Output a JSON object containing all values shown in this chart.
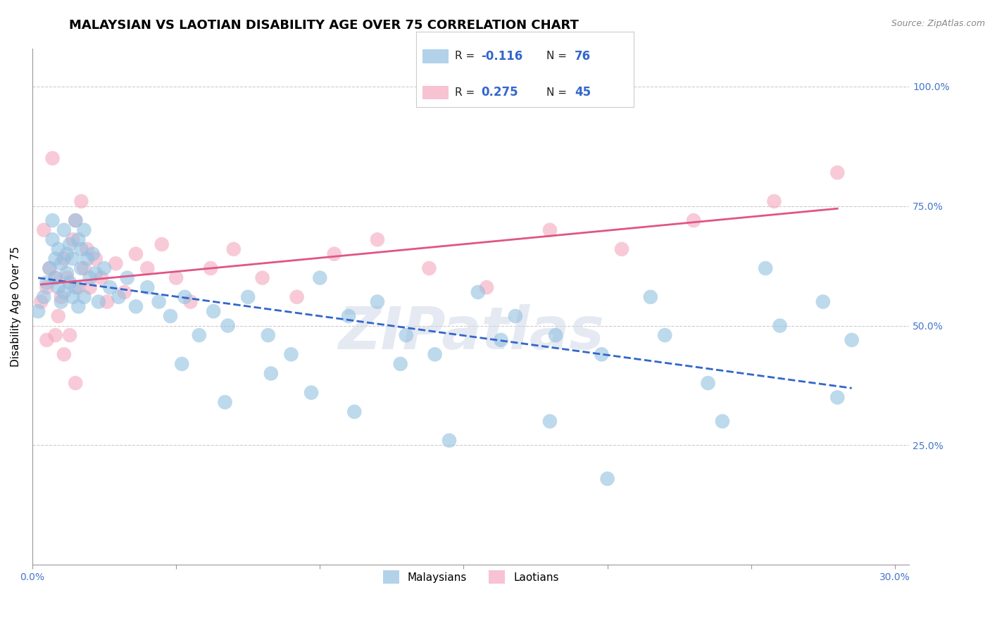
{
  "title": "MALAYSIAN VS LAOTIAN DISABILITY AGE OVER 75 CORRELATION CHART",
  "source": "Source: ZipAtlas.com",
  "ylabel": "Disability Age Over 75",
  "xlim": [
    0.0,
    0.305
  ],
  "ylim": [
    0.0,
    1.08
  ],
  "x_tick_vals": [
    0.0,
    0.05,
    0.1,
    0.15,
    0.2,
    0.25,
    0.3
  ],
  "y_tick_vals": [
    0.0,
    0.25,
    0.5,
    0.75,
    1.0
  ],
  "malaysian_color": "#92c0e0",
  "laotian_color": "#f4a8be",
  "trend_blue_color": "#3366cc",
  "trend_pink_color": "#e05585",
  "watermark": "ZIPatlas",
  "blue_scatter_x": [
    0.002,
    0.004,
    0.005,
    0.006,
    0.007,
    0.007,
    0.008,
    0.008,
    0.009,
    0.009,
    0.01,
    0.01,
    0.011,
    0.011,
    0.012,
    0.012,
    0.013,
    0.013,
    0.014,
    0.014,
    0.015,
    0.015,
    0.016,
    0.016,
    0.017,
    0.017,
    0.018,
    0.018,
    0.019,
    0.02,
    0.021,
    0.022,
    0.023,
    0.025,
    0.027,
    0.03,
    0.033,
    0.036,
    0.04,
    0.044,
    0.048,
    0.053,
    0.058,
    0.063,
    0.068,
    0.075,
    0.082,
    0.09,
    0.1,
    0.11,
    0.12,
    0.13,
    0.14,
    0.155,
    0.168,
    0.182,
    0.198,
    0.215,
    0.235,
    0.255,
    0.275,
    0.052,
    0.067,
    0.083,
    0.097,
    0.112,
    0.128,
    0.145,
    0.163,
    0.18,
    0.2,
    0.22,
    0.24,
    0.26,
    0.28,
    0.285
  ],
  "blue_scatter_y": [
    0.53,
    0.56,
    0.59,
    0.62,
    0.72,
    0.68,
    0.64,
    0.6,
    0.66,
    0.58,
    0.63,
    0.55,
    0.7,
    0.57,
    0.65,
    0.61,
    0.67,
    0.59,
    0.64,
    0.56,
    0.72,
    0.58,
    0.68,
    0.54,
    0.66,
    0.62,
    0.7,
    0.56,
    0.64,
    0.6,
    0.65,
    0.61,
    0.55,
    0.62,
    0.58,
    0.56,
    0.6,
    0.54,
    0.58,
    0.55,
    0.52,
    0.56,
    0.48,
    0.53,
    0.5,
    0.56,
    0.48,
    0.44,
    0.6,
    0.52,
    0.55,
    0.48,
    0.44,
    0.57,
    0.52,
    0.48,
    0.44,
    0.56,
    0.38,
    0.62,
    0.55,
    0.42,
    0.34,
    0.4,
    0.36,
    0.32,
    0.42,
    0.26,
    0.47,
    0.3,
    0.18,
    0.48,
    0.3,
    0.5,
    0.35,
    0.47
  ],
  "pink_scatter_x": [
    0.003,
    0.004,
    0.005,
    0.006,
    0.007,
    0.008,
    0.009,
    0.01,
    0.011,
    0.012,
    0.013,
    0.014,
    0.015,
    0.016,
    0.017,
    0.018,
    0.019,
    0.02,
    0.022,
    0.024,
    0.026,
    0.029,
    0.032,
    0.036,
    0.04,
    0.045,
    0.05,
    0.055,
    0.062,
    0.07,
    0.08,
    0.092,
    0.105,
    0.12,
    0.138,
    0.158,
    0.18,
    0.205,
    0.23,
    0.258,
    0.005,
    0.008,
    0.011,
    0.015,
    0.28
  ],
  "pink_scatter_y": [
    0.55,
    0.7,
    0.58,
    0.62,
    0.85,
    0.6,
    0.52,
    0.56,
    0.64,
    0.6,
    0.48,
    0.68,
    0.72,
    0.58,
    0.76,
    0.62,
    0.66,
    0.58,
    0.64,
    0.6,
    0.55,
    0.63,
    0.57,
    0.65,
    0.62,
    0.67,
    0.6,
    0.55,
    0.62,
    0.66,
    0.6,
    0.56,
    0.65,
    0.68,
    0.62,
    0.58,
    0.7,
    0.66,
    0.72,
    0.76,
    0.47,
    0.48,
    0.44,
    0.38,
    0.82
  ],
  "legend_blue_r": "-0.116",
  "legend_blue_n": "76",
  "legend_pink_r": "0.275",
  "legend_pink_n": "45"
}
